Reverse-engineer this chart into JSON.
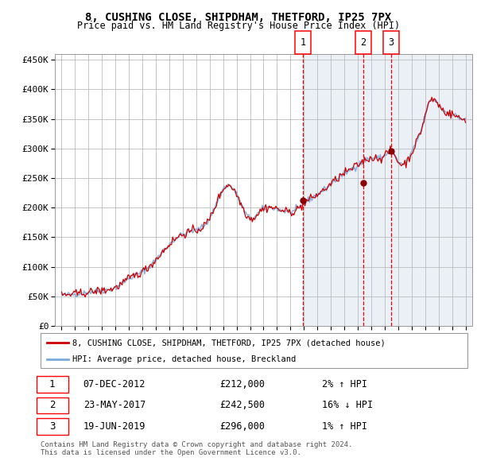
{
  "title": "8, CUSHING CLOSE, SHIPDHAM, THETFORD, IP25 7PX",
  "subtitle": "Price paid vs. HM Land Registry's House Price Index (HPI)",
  "legend_line1": "8, CUSHING CLOSE, SHIPDHAM, THETFORD, IP25 7PX (detached house)",
  "legend_line2": "HPI: Average price, detached house, Breckland",
  "footnote1": "Contains HM Land Registry data © Crown copyright and database right 2024.",
  "footnote2": "This data is licensed under the Open Government Licence v3.0.",
  "transactions": [
    {
      "num": 1,
      "date": "07-DEC-2012",
      "price": 212000,
      "pct": "2%",
      "dir": "↑",
      "x": 2012.92
    },
    {
      "num": 2,
      "date": "23-MAY-2017",
      "price": 242500,
      "pct": "16%",
      "dir": "↓",
      "x": 2017.39
    },
    {
      "num": 3,
      "date": "19-JUN-2019",
      "price": 296000,
      "pct": "1%",
      "dir": "↑",
      "x": 2019.46
    }
  ],
  "hpi_color": "#7aaadc",
  "price_color": "#cc0000",
  "dot_color": "#8b0000",
  "vline_color": "#ee0000",
  "bg_color": "#dce6f1",
  "grid_color": "#bbbbbb",
  "ylim": [
    0,
    460000
  ],
  "xlim_start": 1994.5,
  "xlim_end": 2025.5,
  "yticks": [
    0,
    50000,
    100000,
    150000,
    200000,
    250000,
    300000,
    350000,
    400000,
    450000
  ],
  "key_x": [
    1995.0,
    1996.0,
    1997.0,
    1998.0,
    1999.0,
    2000.0,
    2001.0,
    2002.0,
    2003.0,
    2004.0,
    2005.0,
    2006.0,
    2007.3,
    2008.3,
    2009.0,
    2009.8,
    2011.0,
    2012.0,
    2012.5,
    2013.0,
    2014.0,
    2015.0,
    2016.0,
    2017.0,
    2017.5,
    2018.0,
    2019.0,
    2019.5,
    2020.0,
    2020.7,
    2021.3,
    2021.8,
    2022.2,
    2022.7,
    2023.2,
    2023.7,
    2024.2,
    2024.7,
    2025.0
  ],
  "key_v": [
    52000,
    54000,
    57000,
    60000,
    65000,
    80000,
    92000,
    112000,
    138000,
    155000,
    162000,
    182000,
    238000,
    208000,
    182000,
    195000,
    198000,
    193000,
    197000,
    207000,
    222000,
    240000,
    258000,
    272000,
    280000,
    284000,
    288000,
    295000,
    278000,
    280000,
    308000,
    338000,
    372000,
    382000,
    368000,
    360000,
    356000,
    350000,
    350000
  ]
}
